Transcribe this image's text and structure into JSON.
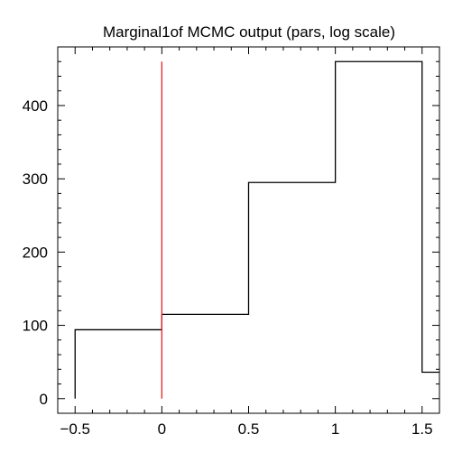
{
  "chart_data": {
    "type": "histogram",
    "title": "Marginal1of MCMC output (pars, log scale)",
    "xlabel": "",
    "ylabel": "",
    "xlim": [
      -0.6,
      1.6
    ],
    "ylim": [
      -20,
      480
    ],
    "x_ticks": [
      -0.5,
      0,
      0.5,
      1,
      1.5
    ],
    "x_tick_labels": [
      "−0.5",
      "0",
      "0.5",
      "1",
      "1.5"
    ],
    "y_ticks": [
      0,
      100,
      200,
      300,
      400
    ],
    "y_tick_labels": [
      "0",
      "100",
      "200",
      "300",
      "400"
    ],
    "bins": [
      {
        "from": -0.5,
        "to": 0.0,
        "count": 94
      },
      {
        "from": 0.0,
        "to": 0.5,
        "count": 115
      },
      {
        "from": 0.5,
        "to": 1.0,
        "count": 295
      },
      {
        "from": 1.0,
        "to": 1.5,
        "count": 460
      },
      {
        "from": 1.5,
        "to": 1.6,
        "count": 36
      }
    ],
    "reference_line": {
      "x": 0,
      "y_from": 0,
      "y_to": 460,
      "color": "#e8201e"
    },
    "line_color": "#000000",
    "grid": false
  }
}
